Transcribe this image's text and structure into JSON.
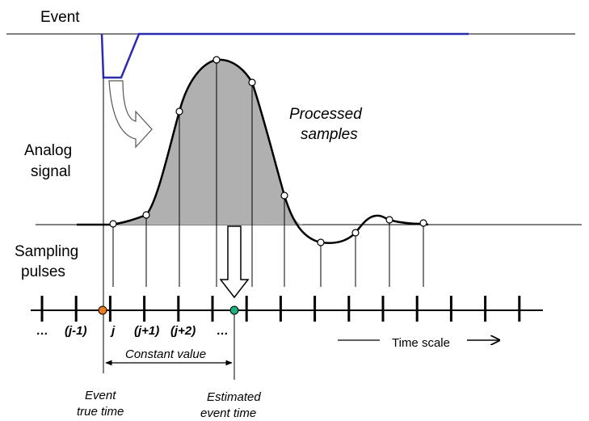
{
  "labels": {
    "event": "Event",
    "analog_line1": "Analog",
    "analog_line2": "signal",
    "processed_line1": "Processed",
    "processed_line2": "samples",
    "sampling_line1": "Sampling",
    "sampling_line2": "pulses",
    "time_scale": "Time scale",
    "constant_value": "Constant value",
    "event_true_line1": "Event",
    "event_true_line2": "true time",
    "estimated_line1": "Estimated",
    "estimated_line2": "event time"
  },
  "tick_labels": [
    "…",
    "(j-1)",
    "j",
    "(j+1)",
    "(j+2)",
    "…"
  ],
  "colors": {
    "event_line": "#2b2bb0",
    "fill_gray": "#b0b0b0",
    "true_time_dot": "#f07a1e",
    "estimated_dot": "#1ab07a"
  }
}
